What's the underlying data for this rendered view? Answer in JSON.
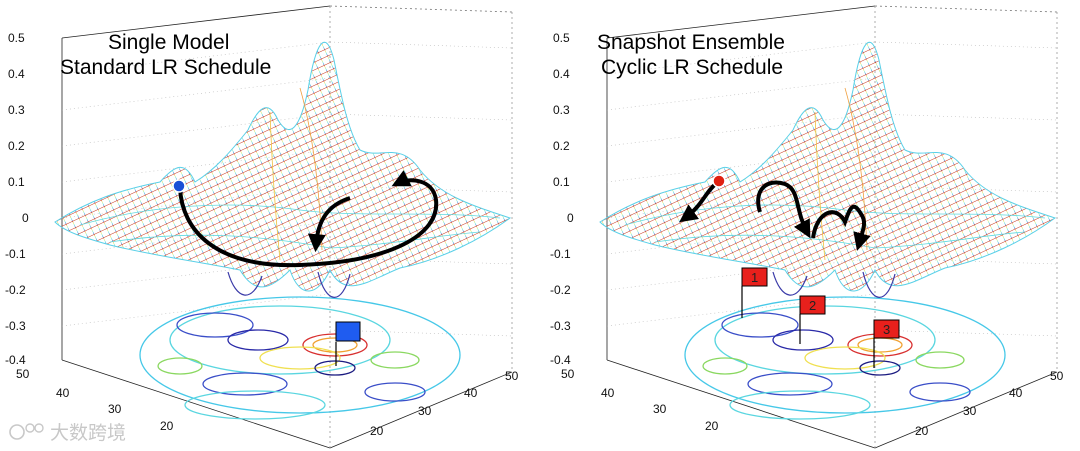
{
  "chart_data": [
    {
      "type": "surface",
      "title_lines": [
        "Single Model",
        "Standard LR Schedule"
      ],
      "z_ticks": [
        "0.5",
        "0.4",
        "0.3",
        "0.2",
        "0.1",
        "0",
        "-0.1",
        "-0.2",
        "-0.3",
        "-0.4"
      ],
      "zlim": [
        -0.4,
        0.5
      ],
      "x_ticks": [
        "50",
        "40",
        "30",
        "20"
      ],
      "y_ticks": [
        "20",
        "30",
        "40",
        "50"
      ],
      "trajectory": "single long path from local start to one minimum",
      "flags": [
        {
          "label": "",
          "color": "#1f5cf0"
        }
      ]
    },
    {
      "type": "surface",
      "title_lines": [
        "Snapshot Ensemble",
        "Cyclic LR Schedule"
      ],
      "z_ticks": [
        "0.5",
        "0.4",
        "0.3",
        "0.2",
        "0.1",
        "0",
        "-0.1",
        "-0.2",
        "-0.3",
        "-0.4"
      ],
      "zlim": [
        -0.4,
        0.5
      ],
      "x_ticks": [
        "50",
        "40",
        "30",
        "20"
      ],
      "y_ticks": [
        "20",
        "30",
        "40",
        "50"
      ],
      "trajectory": "three hops visiting three local minima",
      "flags": [
        {
          "label": "1",
          "color": "#e8201c"
        },
        {
          "label": "2",
          "color": "#e8201c"
        },
        {
          "label": "3",
          "color": "#e8201c"
        }
      ]
    }
  ],
  "watermark": "大数跨境",
  "colors": {
    "start_left": "#1a4fd6",
    "start_right": "#e02010",
    "trajectory": "#000000"
  }
}
